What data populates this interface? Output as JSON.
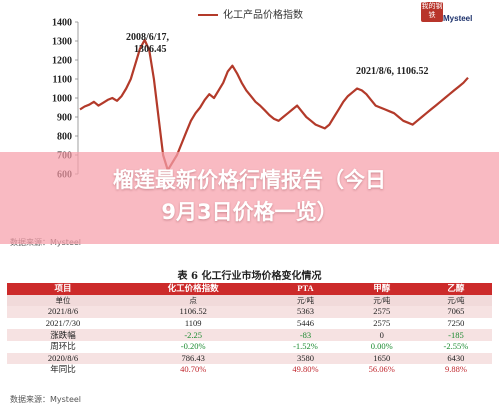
{
  "chart": {
    "legend": "化工产品价格指数",
    "y_ticks": [
      "1400",
      "1300",
      "1200",
      "1100",
      "1000",
      "900",
      "800",
      "700",
      "600"
    ],
    "annotation_peak_date": "2008/6/17,",
    "annotation_peak_value": "1306.45",
    "annotation_latest": "2021/8/6, 1106.52",
    "source": "数据来源：Mysteel",
    "series_color": "#b33a2a"
  },
  "chart_data": {
    "type": "line",
    "title": "",
    "xlabel": "",
    "ylabel": "",
    "ylim": [
      600,
      1400
    ],
    "series": [
      {
        "name": "化工产品价格指数",
        "values": [
          940,
          955,
          965,
          980,
          960,
          975,
          990,
          1000,
          985,
          1010,
          1050,
          1100,
          1180,
          1260,
          1306,
          1250,
          1100,
          900,
          700,
          620,
          660,
          700,
          760,
          820,
          880,
          920,
          950,
          990,
          1020,
          1000,
          1040,
          1080,
          1140,
          1170,
          1130,
          1080,
          1040,
          1010,
          980,
          960,
          935,
          910,
          890,
          880,
          900,
          920,
          940,
          960,
          930,
          900,
          880,
          860,
          850,
          840,
          860,
          900,
          940,
          980,
          1010,
          1030,
          1050,
          1040,
          1020,
          990,
          960,
          950,
          940,
          930,
          920,
          900,
          880,
          870,
          860,
          880,
          900,
          920,
          940,
          960,
          980,
          1000,
          1020,
          1040,
          1060,
          1080,
          1107
        ]
      }
    ]
  },
  "logo": {
    "badge": "我的钢铁",
    "name": "Mysteel"
  },
  "banner": {
    "line1": "榴莲最新价格行情报告（今日",
    "line2": "9月3日价格一览）"
  },
  "table": {
    "title": "表 6    化工行业市场价格变化情况",
    "headers": [
      "项目",
      "化工价格指数",
      "PTA",
      "甲醇",
      "乙醇"
    ],
    "units": [
      "单位",
      "点",
      "元/吨",
      "元/吨",
      "元/吨"
    ],
    "rows": [
      {
        "cells": [
          "2021/8/6",
          "1106.52",
          "5363",
          "2575",
          "7065"
        ],
        "style": "rz",
        "tone": [
          "",
          "",
          "",
          "",
          ""
        ]
      },
      {
        "cells": [
          "2021/7/30",
          "1109",
          "5446",
          "2575",
          "7250"
        ],
        "style": "rw",
        "tone": [
          "",
          "",
          "",
          "",
          ""
        ]
      },
      {
        "cells": [
          "涨跌幅",
          "-2.25",
          "-83",
          "0",
          "-185"
        ],
        "style": "rz",
        "tone": [
          "",
          "dn",
          "dn",
          "",
          "dn"
        ]
      },
      {
        "cells": [
          "周环比",
          "-0.20%",
          "-1.52%",
          "0.00%",
          "-2.55%"
        ],
        "style": "rw",
        "tone": [
          "",
          "dn",
          "dn",
          "dn",
          "dn"
        ]
      },
      {
        "cells": [
          "2020/8/6",
          "786.43",
          "3580",
          "1650",
          "6430"
        ],
        "style": "rz",
        "tone": [
          "",
          "",
          "",
          "",
          ""
        ]
      },
      {
        "cells": [
          "年同比",
          "40.70%",
          "49.80%",
          "56.06%",
          "9.88%"
        ],
        "style": "rw",
        "tone": [
          "",
          "up",
          "up",
          "up",
          "up"
        ]
      }
    ],
    "source": "数据来源：Mysteel"
  }
}
